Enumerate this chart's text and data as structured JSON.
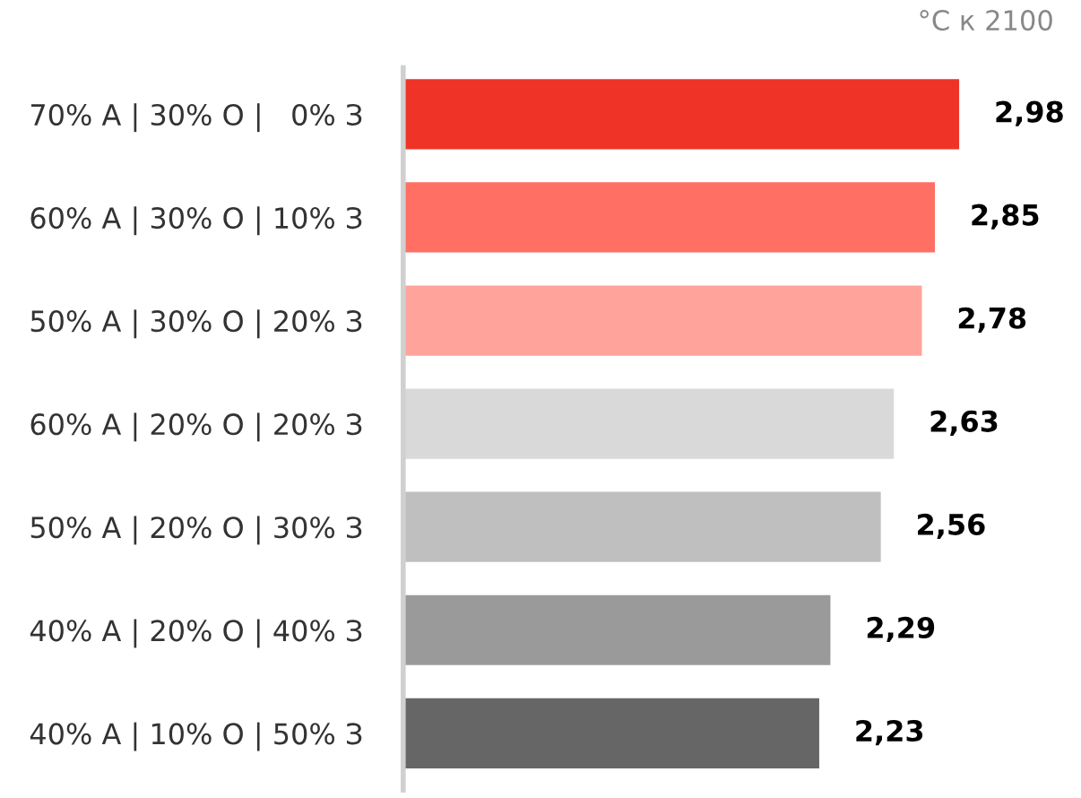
{
  "chart_data": {
    "type": "bar",
    "orientation": "horizontal",
    "title": "°C к 2100",
    "categories": [
      "70% А | 30% О |   0% З",
      "60% А | 30% О | 10% З",
      "50% А | 30% О | 20% З",
      "60% А | 20% О | 20% З",
      "50% А | 20% О | 30% З",
      "40% А | 20% О | 40% З",
      "40% А | 10% О | 50% З"
    ],
    "values": [
      2.98,
      2.85,
      2.78,
      2.63,
      2.56,
      2.29,
      2.23
    ],
    "value_labels": [
      "2,98",
      "2,85",
      "2,78",
      "2,63",
      "2,56",
      "2,29",
      "2,23"
    ],
    "colors": [
      "#ef3326",
      "#ff6f63",
      "#ffa39b",
      "#d9d9d9",
      "#bfbfbf",
      "#9a9a9a",
      "#666666"
    ],
    "grid": false,
    "legend": false
  }
}
